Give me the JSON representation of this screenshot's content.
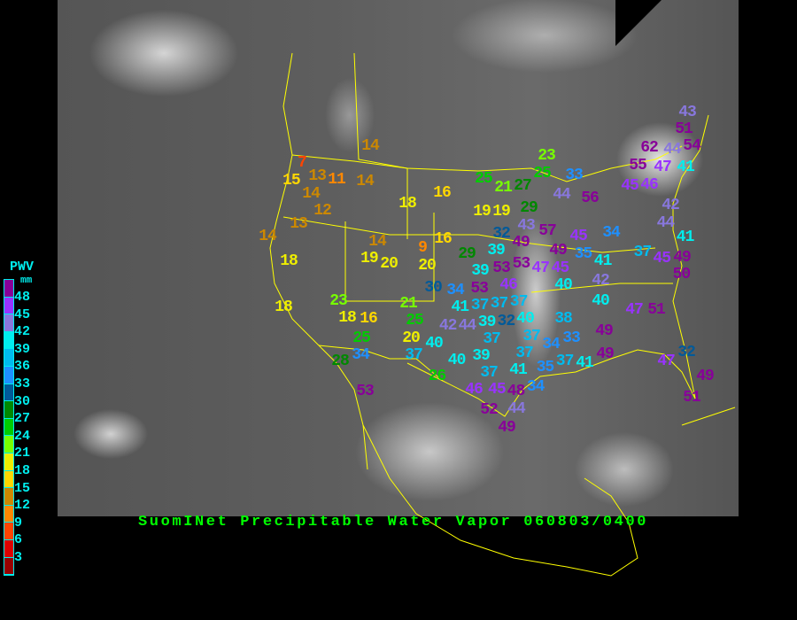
{
  "title": "SuomINet Precipitable Water Vapor 060803/0400",
  "legend": {
    "heading": "PWV",
    "unit": "mm",
    "ticks": [
      "48",
      "45",
      "42",
      "39",
      "36",
      "33",
      "30",
      "27",
      "24",
      "21",
      "18",
      "15",
      "12",
      "9",
      "6",
      "3"
    ],
    "colors_top_to_bottom": [
      "#880099",
      "#9933ff",
      "#8877dd",
      "#00eeee",
      "#00bbee",
      "#1e90ff",
      "#005a99",
      "#008800",
      "#00cc00",
      "#77ff00",
      "#eeee00",
      "#ffd700",
      "#cc8800",
      "#ff8800",
      "#ff4400",
      "#dd0000",
      "#990000"
    ]
  },
  "colors": {
    "title": "#00ff00",
    "legend_text": "#00eeee",
    "borders": "#ffff00",
    "background": "#000000"
  },
  "stations": [
    {
      "value": "7"
    },
    {
      "value": "15"
    },
    {
      "value": "13"
    },
    {
      "value": "11"
    },
    {
      "value": "14"
    },
    {
      "value": "14"
    },
    {
      "value": "14"
    },
    {
      "value": "12"
    },
    {
      "value": "13"
    },
    {
      "value": "14"
    },
    {
      "value": "18"
    },
    {
      "value": "14"
    },
    {
      "value": "19"
    },
    {
      "value": "20"
    },
    {
      "value": "18"
    },
    {
      "value": "16"
    },
    {
      "value": "16"
    },
    {
      "value": "9"
    },
    {
      "value": "20"
    },
    {
      "value": "25"
    },
    {
      "value": "21"
    },
    {
      "value": "27"
    },
    {
      "value": "23"
    },
    {
      "value": "25"
    },
    {
      "value": "33"
    },
    {
      "value": "44"
    },
    {
      "value": "56"
    },
    {
      "value": "19"
    },
    {
      "value": "19"
    },
    {
      "value": "29"
    },
    {
      "value": "43"
    },
    {
      "value": "57"
    },
    {
      "value": "32"
    },
    {
      "value": "49"
    },
    {
      "value": "45"
    },
    {
      "value": "34"
    },
    {
      "value": "35"
    },
    {
      "value": "41"
    },
    {
      "value": "49"
    },
    {
      "value": "45"
    },
    {
      "value": "47"
    },
    {
      "value": "53"
    },
    {
      "value": "39"
    },
    {
      "value": "29"
    },
    {
      "value": "53"
    },
    {
      "value": "62"
    },
    {
      "value": "55"
    },
    {
      "value": "47"
    },
    {
      "value": "41"
    },
    {
      "value": "44"
    },
    {
      "value": "54"
    },
    {
      "value": "51"
    },
    {
      "value": "43"
    },
    {
      "value": "46"
    },
    {
      "value": "45"
    },
    {
      "value": "42"
    },
    {
      "value": "44"
    },
    {
      "value": "41"
    },
    {
      "value": "37"
    },
    {
      "value": "45"
    },
    {
      "value": "49"
    },
    {
      "value": "50"
    },
    {
      "value": "18"
    },
    {
      "value": "23"
    },
    {
      "value": "18"
    },
    {
      "value": "16"
    },
    {
      "value": "21"
    },
    {
      "value": "30"
    },
    {
      "value": "34"
    },
    {
      "value": "39"
    },
    {
      "value": "53"
    },
    {
      "value": "46"
    },
    {
      "value": "41"
    },
    {
      "value": "37"
    },
    {
      "value": "37"
    },
    {
      "value": "37"
    },
    {
      "value": "40"
    },
    {
      "value": "39"
    },
    {
      "value": "32"
    },
    {
      "value": "42"
    },
    {
      "value": "44"
    },
    {
      "value": "37"
    },
    {
      "value": "25"
    },
    {
      "value": "20"
    },
    {
      "value": "40"
    },
    {
      "value": "25"
    },
    {
      "value": "34"
    },
    {
      "value": "28"
    },
    {
      "value": "37"
    },
    {
      "value": "40"
    },
    {
      "value": "39"
    },
    {
      "value": "37"
    },
    {
      "value": "26"
    },
    {
      "value": "53"
    },
    {
      "value": "40"
    },
    {
      "value": "42"
    },
    {
      "value": "40"
    },
    {
      "value": "38"
    },
    {
      "value": "37"
    },
    {
      "value": "33"
    },
    {
      "value": "37"
    },
    {
      "value": "34"
    },
    {
      "value": "37"
    },
    {
      "value": "41"
    },
    {
      "value": "35"
    },
    {
      "value": "41"
    },
    {
      "value": "34"
    },
    {
      "value": "49"
    },
    {
      "value": "49"
    },
    {
      "value": "47"
    },
    {
      "value": "51"
    },
    {
      "value": "46"
    },
    {
      "value": "45"
    },
    {
      "value": "48"
    },
    {
      "value": "44"
    },
    {
      "value": "52"
    },
    {
      "value": "49"
    },
    {
      "value": "32"
    },
    {
      "value": "47"
    },
    {
      "value": "49"
    },
    {
      "value": "51"
    }
  ]
}
